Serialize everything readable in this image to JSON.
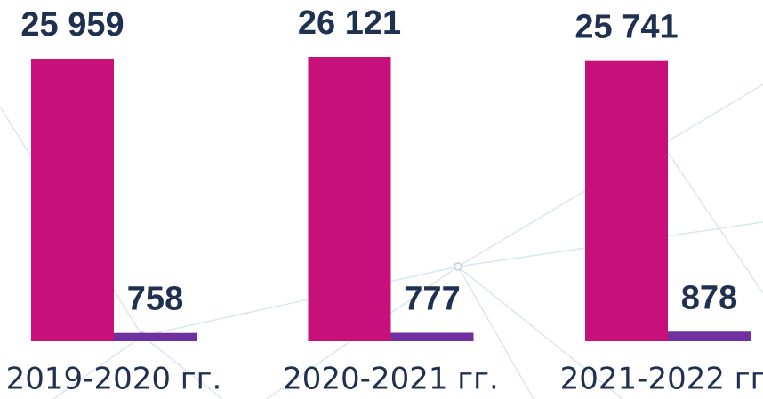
{
  "chart_data": {
    "type": "bar",
    "categories": [
      "2019-2020 гг.",
      "2020-2021 гг.",
      "2021-2022 гг."
    ],
    "series": [
      {
        "color": "#c8107a",
        "values": [
          25959,
          26121,
          25741
        ],
        "value_labels": [
          "25 959",
          "26 121",
          "25 741"
        ]
      },
      {
        "color": "#7030a0",
        "values": [
          758,
          777,
          878
        ]
      }
    ]
  }
}
